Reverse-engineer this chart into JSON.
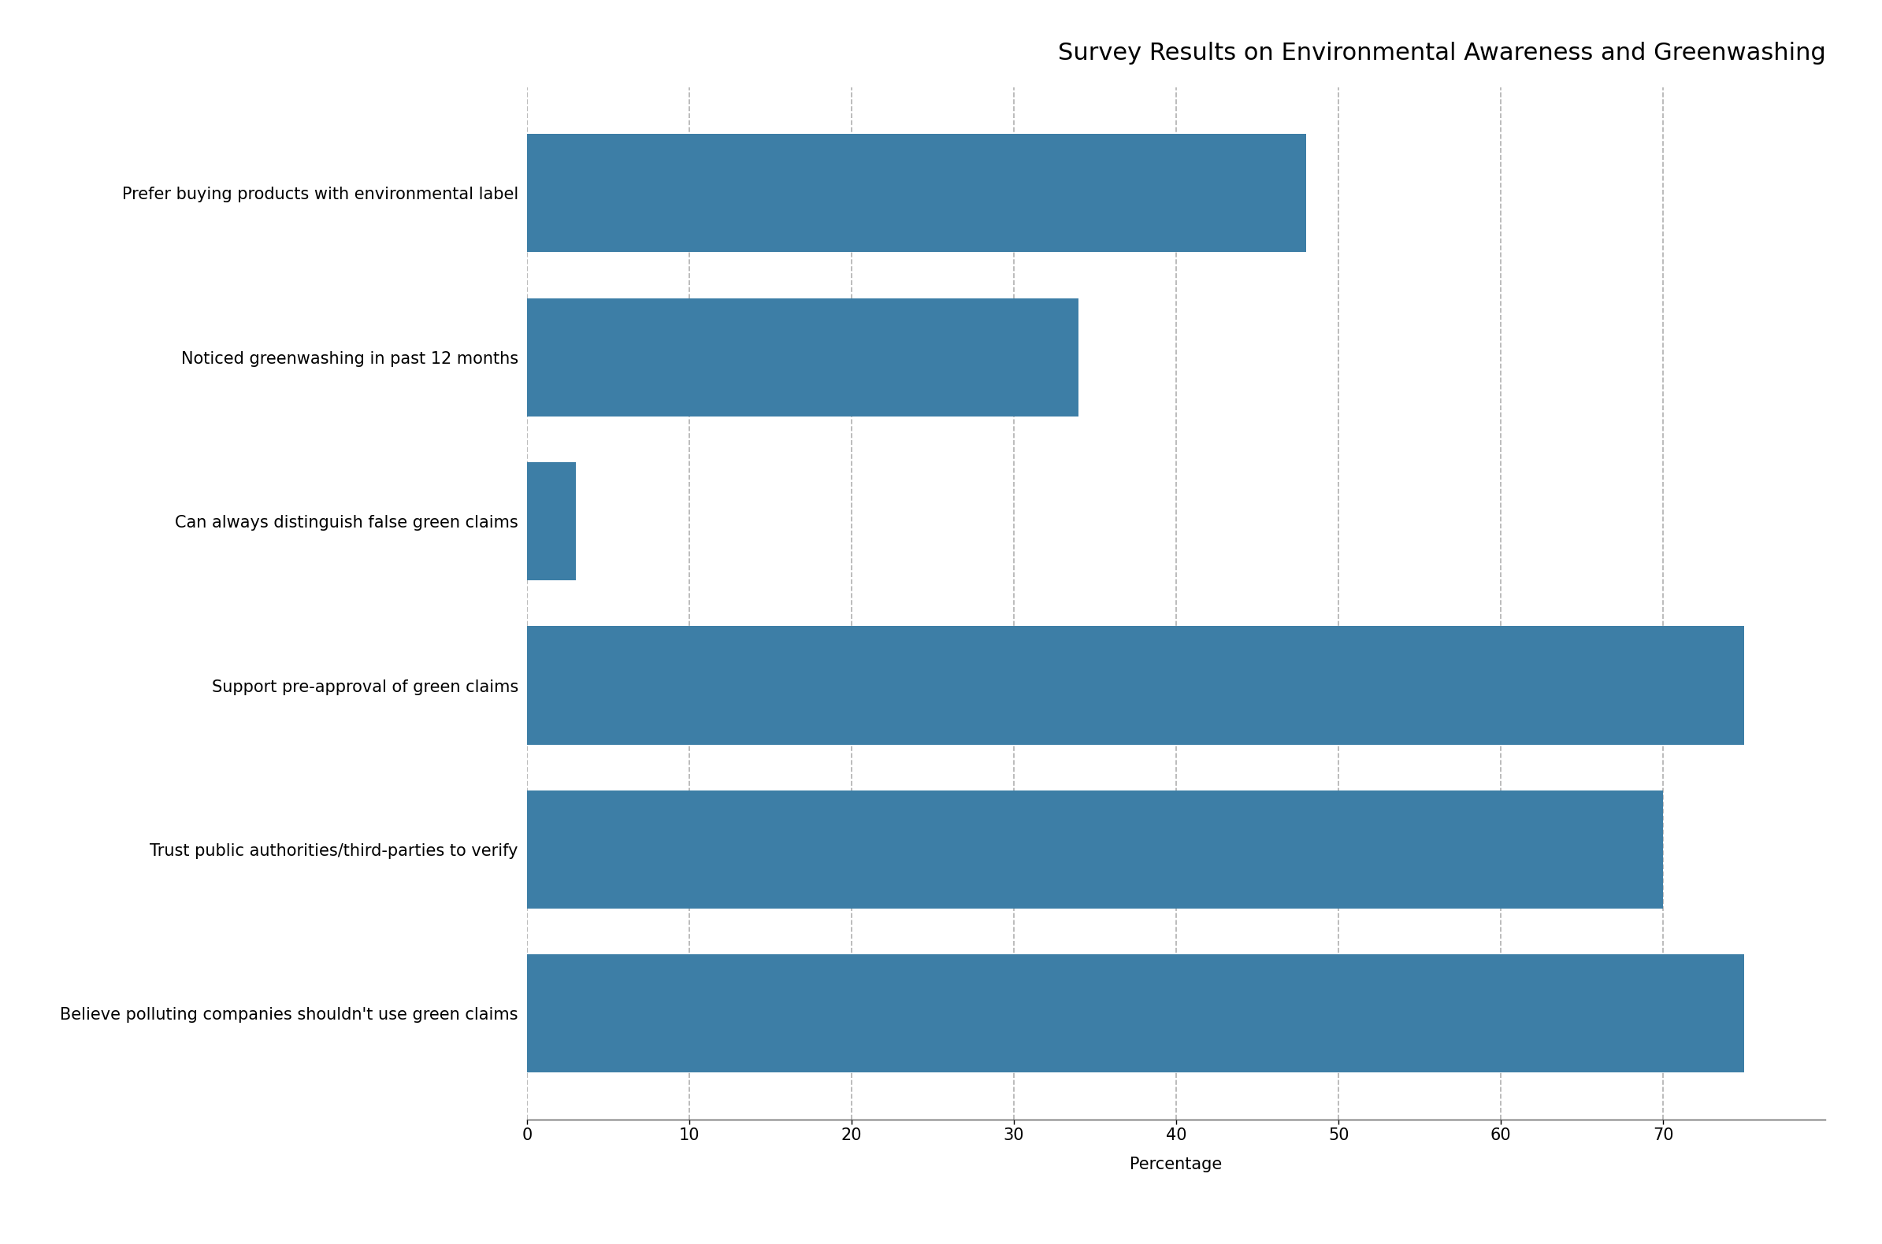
{
  "title": "Survey Results on Environmental Awareness and Greenwashing",
  "categories": [
    "Prefer buying products with environmental label",
    "Noticed greenwashing in past 12 months",
    "Can always distinguish false green claims",
    "Support pre-approval of green claims",
    "Trust public authorities/third-parties to verify",
    "Believe polluting companies shouldn't use green claims"
  ],
  "values": [
    48,
    34,
    3,
    75,
    70,
    75
  ],
  "bar_color": "#3d7ea6",
  "xlabel": "Percentage",
  "ylabel": "",
  "xlim": [
    0,
    80
  ],
  "xticks": [
    0,
    10,
    20,
    30,
    40,
    50,
    60,
    70
  ],
  "background_color": "#ffffff",
  "grid_color": "#b0b0b0",
  "title_fontsize": 22,
  "label_fontsize": 15,
  "tick_fontsize": 15
}
